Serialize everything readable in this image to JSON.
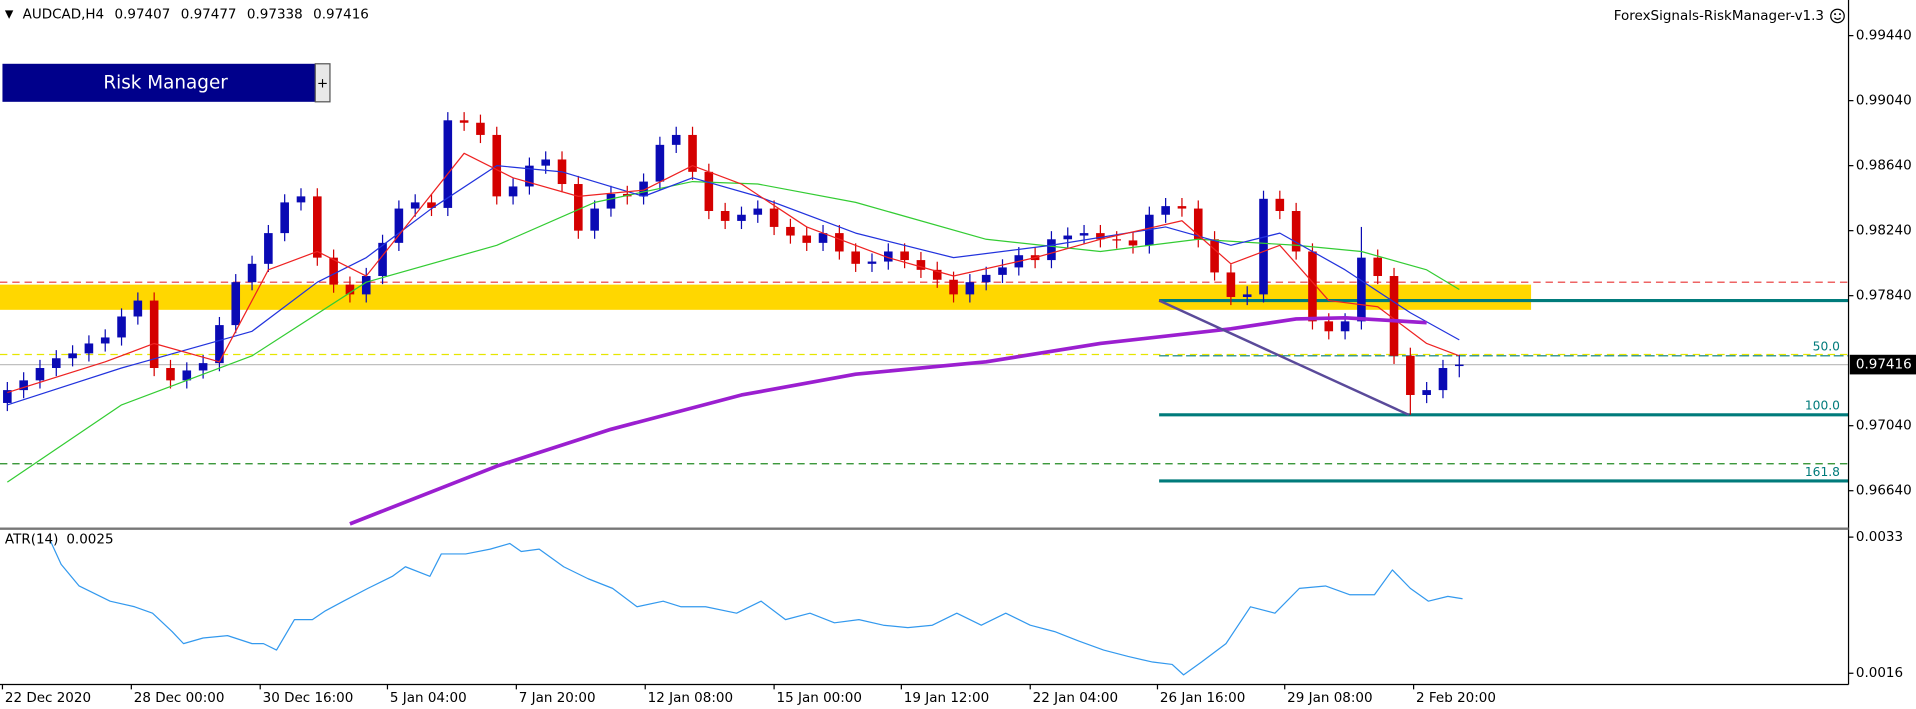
{
  "header": {
    "symbol": "AUDCAD,H4",
    "ohlc": [
      0.97407,
      0.97477,
      0.97338,
      0.97416
    ]
  },
  "indicator_name": "ForexSignals-RiskManager-v1.3",
  "button": {
    "label": "Risk Manager",
    "toggle": "+"
  },
  "chart_data": [
    {
      "type": "candlestick",
      "xlim": [
        -0.45,
        112.86
      ],
      "xticks": [
        {
          "value": -0.3,
          "label": "22 Dec 2020"
        },
        {
          "value": 7.6,
          "label": "28 Dec 00:00"
        },
        {
          "value": 15.5,
          "label": "30 Dec 16:00"
        },
        {
          "value": 23.3,
          "label": "5 Jan 04:00"
        },
        {
          "value": 31.2,
          "label": "7 Jan 20:00"
        },
        {
          "value": 39.1,
          "label": "12 Jan 08:00"
        },
        {
          "value": 47.0,
          "label": "15 Jan 00:00"
        },
        {
          "value": 54.8,
          "label": "19 Jan 12:00"
        },
        {
          "value": 62.7,
          "label": "22 Jan 04:00"
        },
        {
          "value": 70.5,
          "label": "26 Jan 16:00"
        },
        {
          "value": 78.3,
          "label": "29 Jan 08:00"
        },
        {
          "value": 86.2,
          "label": "2 Feb 20:00"
        }
      ],
      "ylim": [
        0.96414,
        0.99629
      ],
      "yticks": [
        {
          "value": 0.9944,
          "label": "0.99440"
        },
        {
          "value": 0.9904,
          "label": "0.99040"
        },
        {
          "value": 0.9864,
          "label": "0.98640"
        },
        {
          "value": 0.9824,
          "label": "0.98240"
        },
        {
          "value": 0.9784,
          "label": "0.97840"
        },
        {
          "value": 0.9704,
          "label": "0.97040"
        },
        {
          "value": 0.9664,
          "label": "0.96640"
        }
      ],
      "current_price": 0.97416,
      "colors": {
        "up": "#0a0ab4",
        "down": "#d40000"
      },
      "open": [
        0.9718,
        0.97259,
        0.97319,
        0.97395,
        0.97455,
        0.97485,
        0.97546,
        0.97583,
        0.97712,
        0.9781,
        0.97395,
        0.97319,
        0.9738,
        0.97425,
        0.97659,
        0.97923,
        0.98036,
        0.98225,
        0.98414,
        0.98451,
        0.98074,
        0.97908,
        0.97848,
        0.97961,
        0.98165,
        0.98376,
        0.98414,
        0.9838,
        0.98919,
        0.98904,
        0.98829,
        0.98451,
        0.98512,
        0.9864,
        0.98678,
        0.98527,
        0.9824,
        0.98376,
        0.98466,
        0.98451,
        0.98542,
        0.98768,
        0.98829,
        0.98602,
        0.98361,
        0.983,
        0.98338,
        0.98376,
        0.98263,
        0.9821,
        0.98165,
        0.98225,
        0.98112,
        0.98036,
        0.9805,
        0.98112,
        0.98059,
        0.97999,
        0.97938,
        0.97848,
        0.97923,
        0.97968,
        0.98014,
        0.98089,
        0.98059,
        0.98187,
        0.9821,
        0.98225,
        0.98187,
        0.9818,
        0.98149,
        0.98338,
        0.98391,
        0.98376,
        0.98187,
        0.97983,
        0.97832,
        0.97848,
        0.98436,
        0.98361,
        0.98112,
        0.97682,
        0.97621,
        0.97682,
        0.98074,
        0.97961,
        0.9747,
        0.97229,
        0.97259,
        0.97407
      ],
      "high": [
        0.97309,
        0.97369,
        0.97445,
        0.97505,
        0.97535,
        0.97596,
        0.97633,
        0.97762,
        0.9786,
        0.9786,
        0.97445,
        0.9743,
        0.97475,
        0.97709,
        0.97973,
        0.98086,
        0.98275,
        0.98464,
        0.98501,
        0.98501,
        0.98124,
        0.97958,
        0.98011,
        0.98215,
        0.98426,
        0.98464,
        0.98464,
        0.98969,
        0.98969,
        0.98954,
        0.98879,
        0.98562,
        0.9869,
        0.98728,
        0.98728,
        0.98577,
        0.98426,
        0.98516,
        0.98516,
        0.98592,
        0.98818,
        0.98879,
        0.98879,
        0.98652,
        0.98411,
        0.98388,
        0.98426,
        0.98426,
        0.98313,
        0.9826,
        0.98275,
        0.98275,
        0.98162,
        0.981,
        0.98162,
        0.98162,
        0.98109,
        0.98049,
        0.97988,
        0.97973,
        0.98018,
        0.98064,
        0.98139,
        0.98139,
        0.98237,
        0.9826,
        0.98275,
        0.98275,
        0.98237,
        0.9823,
        0.98388,
        0.98441,
        0.98441,
        0.98426,
        0.98237,
        0.98033,
        0.97898,
        0.98486,
        0.98486,
        0.98411,
        0.98162,
        0.97732,
        0.97732,
        0.98263,
        0.98124,
        0.98011,
        0.9752,
        0.97309,
        0.97445,
        0.97477
      ],
      "low": [
        0.9713,
        0.97209,
        0.97269,
        0.97345,
        0.97405,
        0.97435,
        0.97496,
        0.97533,
        0.97662,
        0.97345,
        0.97269,
        0.97269,
        0.9733,
        0.97375,
        0.97609,
        0.97873,
        0.97986,
        0.98175,
        0.98364,
        0.98024,
        0.97858,
        0.97798,
        0.97798,
        0.97911,
        0.98115,
        0.98326,
        0.9833,
        0.9833,
        0.98854,
        0.98779,
        0.98401,
        0.98401,
        0.98462,
        0.9859,
        0.98477,
        0.9819,
        0.9819,
        0.98326,
        0.98401,
        0.98401,
        0.98492,
        0.98718,
        0.98552,
        0.98311,
        0.9825,
        0.9825,
        0.98288,
        0.98213,
        0.9816,
        0.98115,
        0.98115,
        0.98062,
        0.97986,
        0.97986,
        0.98,
        0.98009,
        0.97949,
        0.97888,
        0.97798,
        0.97798,
        0.97873,
        0.97918,
        0.97964,
        0.98009,
        0.98009,
        0.98137,
        0.9816,
        0.98137,
        0.9813,
        0.98099,
        0.98099,
        0.98288,
        0.98326,
        0.98137,
        0.97933,
        0.97782,
        0.97782,
        0.97798,
        0.98311,
        0.98062,
        0.97632,
        0.97571,
        0.97571,
        0.97632,
        0.97911,
        0.9742,
        0.97107,
        0.97179,
        0.97209,
        0.97338
      ],
      "close": [
        0.97259,
        0.97319,
        0.97395,
        0.97455,
        0.97485,
        0.97546,
        0.97583,
        0.97712,
        0.9781,
        0.97395,
        0.97319,
        0.9738,
        0.97425,
        0.97659,
        0.97923,
        0.98036,
        0.98225,
        0.98414,
        0.98451,
        0.98074,
        0.97908,
        0.97848,
        0.97961,
        0.98165,
        0.98376,
        0.98414,
        0.9838,
        0.98919,
        0.98904,
        0.98829,
        0.98451,
        0.98512,
        0.9864,
        0.98678,
        0.98527,
        0.9824,
        0.98376,
        0.98466,
        0.98451,
        0.98542,
        0.98768,
        0.98829,
        0.98602,
        0.98361,
        0.983,
        0.98338,
        0.98376,
        0.98263,
        0.9821,
        0.98165,
        0.98225,
        0.98112,
        0.98036,
        0.9805,
        0.98112,
        0.98059,
        0.97999,
        0.97938,
        0.97848,
        0.97923,
        0.97968,
        0.98014,
        0.98089,
        0.98059,
        0.98187,
        0.9821,
        0.98225,
        0.98187,
        0.9818,
        0.98149,
        0.98338,
        0.98391,
        0.98376,
        0.98187,
        0.97983,
        0.97832,
        0.97848,
        0.98436,
        0.98361,
        0.98112,
        0.97682,
        0.97621,
        0.97682,
        0.98074,
        0.97961,
        0.9747,
        0.97229,
        0.97259,
        0.97395,
        0.97416
      ],
      "zone": {
        "color": "#ffd700",
        "x": [
          -1,
          93.4
        ],
        "values": [
          0.97908,
          0.97753
        ]
      },
      "levels": [
        {
          "value": 0.97923,
          "color": "#e83030",
          "dash": true
        },
        {
          "value": 0.97478,
          "color": "#e6e600",
          "dash": true
        },
        {
          "value": 0.96806,
          "color": "#228b22",
          "dash": true
        }
      ],
      "lines": [
        {
          "color": "#33cc33",
          "width": 1,
          "x": [
            0,
            7,
            15,
            22,
            30,
            36,
            42,
            46,
            52,
            60,
            67,
            73,
            79,
            83,
            87,
            89
          ],
          "values": [
            0.96693,
            0.97168,
            0.9747,
            0.97923,
            0.9815,
            0.98414,
            0.98542,
            0.98527,
            0.98414,
            0.98187,
            0.98112,
            0.98187,
            0.9815,
            0.98112,
            0.97999,
            0.97878
          ]
        },
        {
          "color": "#2233dd",
          "width": 1,
          "x": [
            0,
            7,
            15,
            19,
            22,
            26,
            30,
            34,
            39,
            42,
            46,
            52,
            58,
            64,
            71,
            75,
            78,
            82,
            86,
            89
          ],
          "values": [
            0.97168,
            0.97395,
            0.97621,
            0.97923,
            0.98074,
            0.98376,
            0.9864,
            0.98602,
            0.98451,
            0.98565,
            0.98451,
            0.98225,
            0.98074,
            0.9815,
            0.98263,
            0.9815,
            0.98225,
            0.97999,
            0.97735,
            0.97568
          ]
        },
        {
          "color": "#ee2222",
          "width": 1,
          "x": [
            0,
            6,
            9,
            13,
            16,
            19,
            22,
            25,
            28,
            31,
            35,
            39,
            42,
            45,
            49,
            54,
            58,
            63,
            67,
            72,
            75,
            78,
            81,
            84,
            87,
            89
          ],
          "values": [
            0.97244,
            0.97433,
            0.97546,
            0.97433,
            0.97999,
            0.98112,
            0.97961,
            0.98338,
            0.98716,
            0.98565,
            0.98451,
            0.98489,
            0.9864,
            0.98527,
            0.98263,
            0.98074,
            0.97961,
            0.98074,
            0.98187,
            0.98301,
            0.98036,
            0.9815,
            0.9781,
            0.97772,
            0.97546,
            0.9747
          ]
        },
        {
          "color": "#9b1fd0",
          "width": 3,
          "x": [
            21,
            30,
            37,
            45,
            52,
            60,
            67,
            75,
            79,
            82,
            87
          ],
          "values": [
            0.96436,
            0.96791,
            0.97018,
            0.97229,
            0.97357,
            0.97433,
            0.97546,
            0.97636,
            0.97697,
            0.97704,
            0.97674
          ]
        }
      ],
      "trendline": {
        "color": "#5a4a9a",
        "x": [
          70.6,
          85.9
        ],
        "values": [
          0.9781,
          0.97107
        ]
      },
      "fibo": {
        "color": "#007b7b",
        "from": 70.6,
        "lines": [
          {
            "value": 0.9781
          },
          {
            "value": 0.9747,
            "level": {
              "value": 50,
              "label": "50.0"
            }
          },
          {
            "value": 0.97107,
            "level": {
              "value": 100,
              "label": "100.0"
            }
          },
          {
            "value": 0.967,
            "level": 161.8
          }
        ]
      }
    },
    {
      "type": "line",
      "title": "ATR(14)",
      "last_value": 0.0025,
      "color": "#3399ee",
      "xlim": [
        -0.45,
        112.86
      ],
      "ylim": [
        0.00146,
        0.00339
      ],
      "yticks": [
        0.0033,
        0.0016
      ],
      "x": [
        2.6,
        3.3,
        4.4,
        6.3,
        7.8,
        8.9,
        10.1,
        10.8,
        12.0,
        13.5,
        15.0,
        15.7,
        16.5,
        17.6,
        18.7,
        19.5,
        20.6,
        22.1,
        23.6,
        24.4,
        25.9,
        26.6,
        28.1,
        29.6,
        30.8,
        31.5,
        32.6,
        34.1,
        35.6,
        37.1,
        38.6,
        40.2,
        41.3,
        42.8,
        44.7,
        46.2,
        47.7,
        49.2,
        50.7,
        52.2,
        53.7,
        55.2,
        56.7,
        58.2,
        59.7,
        61.2,
        62.7,
        64.2,
        65.7,
        67.2,
        68.7,
        70.2,
        71.4,
        72.1,
        73.2,
        74.7,
        76.2,
        77.7,
        79.2,
        80.8,
        82.3,
        83.8,
        84.9,
        86.0,
        87.1,
        88.3,
        89.2
      ],
      "values": [
        0.00327,
        0.00296,
        0.00269,
        0.0025,
        0.00243,
        0.00235,
        0.00212,
        0.00197,
        0.00204,
        0.00207,
        0.00197,
        0.00197,
        0.00189,
        0.00227,
        0.00227,
        0.00238,
        0.0025,
        0.00266,
        0.00281,
        0.00293,
        0.00281,
        0.00309,
        0.00309,
        0.00315,
        0.00322,
        0.00312,
        0.00315,
        0.00293,
        0.00278,
        0.00266,
        0.00243,
        0.0025,
        0.00243,
        0.00243,
        0.00235,
        0.0025,
        0.00227,
        0.00235,
        0.00223,
        0.00227,
        0.0022,
        0.00217,
        0.0022,
        0.00235,
        0.0022,
        0.00235,
        0.0022,
        0.00212,
        0.002,
        0.00189,
        0.00181,
        0.00174,
        0.00171,
        0.00158,
        0.00174,
        0.00197,
        0.00243,
        0.00235,
        0.00266,
        0.00269,
        0.00258,
        0.00258,
        0.00289,
        0.00266,
        0.0025,
        0.00256,
        0.00253
      ]
    }
  ]
}
